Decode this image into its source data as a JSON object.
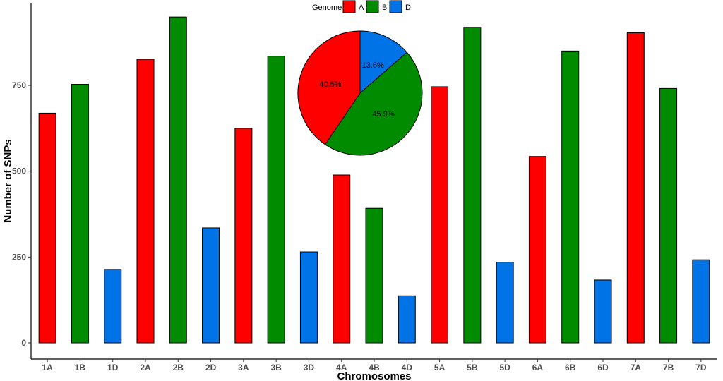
{
  "chart_data": [
    {
      "type": "bar",
      "xlabel": "Chromosomes",
      "ylabel": "Number of SNPs",
      "ylim": [
        0,
        990
      ],
      "yticks": [
        0,
        250,
        500,
        750
      ],
      "grid": false,
      "categories": [
        "1A",
        "1B",
        "1D",
        "2A",
        "2B",
        "2D",
        "3A",
        "3B",
        "3D",
        "4A",
        "4B",
        "4D",
        "5A",
        "5B",
        "5D",
        "6A",
        "6B",
        "6D",
        "7A",
        "7B",
        "7D"
      ],
      "values": [
        669,
        753,
        214,
        826,
        949,
        335,
        625,
        835,
        265,
        489,
        392,
        137,
        746,
        919,
        235,
        543,
        850,
        183,
        903,
        741,
        242
      ],
      "genome": [
        "A",
        "B",
        "D",
        "A",
        "B",
        "D",
        "A",
        "B",
        "D",
        "A",
        "B",
        "D",
        "A",
        "B",
        "D",
        "A",
        "B",
        "D",
        "A",
        "B",
        "D"
      ]
    },
    {
      "type": "pie",
      "slices": [
        {
          "genome": "A",
          "value": 40.5,
          "label": "40.5%"
        },
        {
          "genome": "B",
          "value": 45.9,
          "label": "45.9%"
        },
        {
          "genome": "D",
          "value": 13.6,
          "label": "13.6%"
        }
      ]
    }
  ],
  "legend": {
    "title": "Genome",
    "placement": "top-center",
    "entries": [
      {
        "key": "A",
        "label": "A"
      },
      {
        "key": "B",
        "label": "B"
      },
      {
        "key": "D",
        "label": "D"
      }
    ]
  },
  "colors": {
    "A": "#ff0000",
    "B": "#008b00",
    "D": "#0073e6"
  }
}
